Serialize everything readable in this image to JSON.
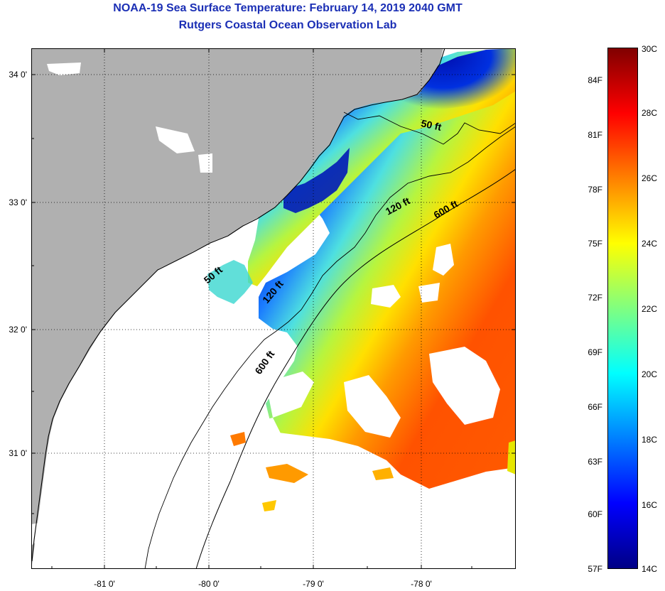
{
  "title": {
    "line1": "NOAA-19 Sea Surface Temperature:  February 14, 2019 2040 GMT",
    "line2": "Rutgers Coastal Ocean Observation Lab"
  },
  "map": {
    "lat_labels": [
      "34 0'",
      "33 0'",
      "32 0'",
      "31 0'"
    ],
    "lon_labels": [
      "-81 0'",
      "-80 0'",
      "-79 0'",
      "-78 0'"
    ],
    "isobaths": {
      "shelf_50": "50 ft",
      "mid_120_a": "120 ft",
      "break_600_a": "600 ft",
      "inner_50": "50 ft",
      "mid_120_b": "120 ft",
      "break_600_b": "600 ft"
    },
    "colors": {
      "land": "#b0b0b0",
      "cloud": "#ffffff",
      "coast": "#000000"
    }
  },
  "colorbar": {
    "fahrenheit_labels": [
      "84F",
      "81F",
      "78F",
      "75F",
      "72F",
      "69F",
      "66F",
      "63F",
      "60F",
      "57F"
    ],
    "celsius_labels": [
      "30C",
      "28C",
      "26C",
      "24C",
      "22C",
      "20C",
      "18C",
      "16C",
      "14C"
    ],
    "range_c": [
      14,
      30
    ],
    "colors": [
      "#000085",
      "#0000ff",
      "#0080ff",
      "#00ffff",
      "#80ff80",
      "#ffff00",
      "#ff8000",
      "#ff0000",
      "#800000"
    ]
  }
}
